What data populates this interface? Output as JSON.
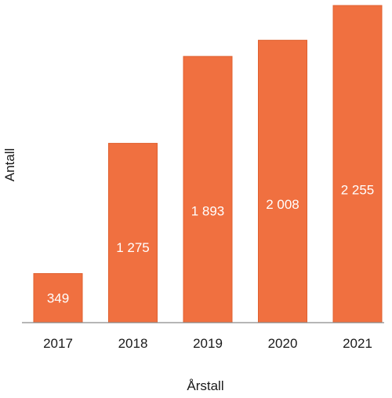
{
  "chart_data": {
    "type": "bar",
    "categories": [
      "2017",
      "2018",
      "2019",
      "2020",
      "2021"
    ],
    "values": [
      349,
      1275,
      1893,
      2008,
      2255
    ],
    "value_labels": [
      "349",
      "1 275",
      "1  893",
      "2 008",
      "2 255"
    ],
    "title": "",
    "xlabel": "Årstall",
    "ylabel": "Antall",
    "ylim": [
      0,
      2255
    ],
    "grid": false,
    "legend": "none",
    "bar_color": "#F07040",
    "bar_edge_color": "#E0602F",
    "axis_color": "#8a8a8a"
  }
}
